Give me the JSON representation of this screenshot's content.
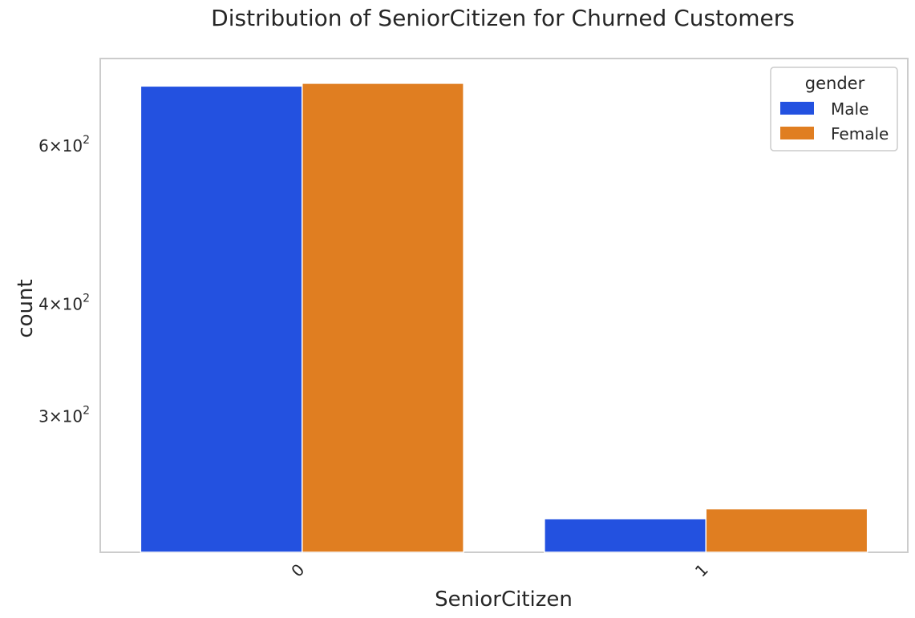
{
  "chart_data": {
    "type": "bar",
    "title": "Distribution of SeniorCitizen for Churned Customers",
    "xlabel": "SeniorCitizen",
    "ylabel": "count",
    "categories": [
      "0",
      "1"
    ],
    "series": [
      {
        "name": "Male",
        "color": "#2351e0",
        "values": [
          699,
          231
        ]
      },
      {
        "name": "Female",
        "color": "#e07e21",
        "values": [
          704,
          237
        ]
      }
    ],
    "yscale": "log",
    "ylim": [
      212,
      750
    ],
    "yticks": [
      {
        "value": 600,
        "mantissa": "6",
        "base": "10",
        "exponent": "2"
      },
      {
        "value": 400,
        "mantissa": "4",
        "base": "10",
        "exponent": "2"
      },
      {
        "value": 300,
        "mantissa": "3",
        "base": "10",
        "exponent": "2"
      }
    ],
    "legend": {
      "title": "gender",
      "position": "upper-right"
    },
    "grid": false
  }
}
